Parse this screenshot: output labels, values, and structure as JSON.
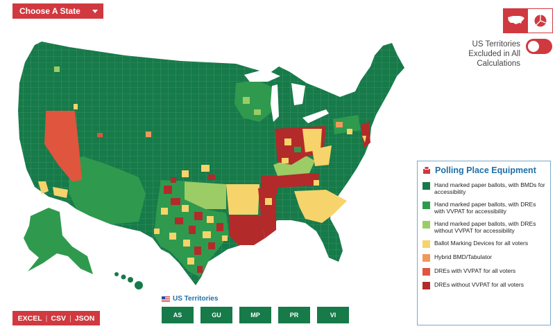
{
  "state_selector": {
    "label": "Choose A State"
  },
  "territory_toggle": {
    "label": "US Territories Excluded in All Calculations"
  },
  "legend": {
    "title": "Polling Place Equipment",
    "items": [
      {
        "label": "Hand marked paper ballots, with BMDs for accessibility",
        "color": "#167a49"
      },
      {
        "label": "Hand marked paper ballots, with DREs with VVPAT for accessibility",
        "color": "#2f9a4e"
      },
      {
        "label": "Hand marked paper ballots, with DREs without VVPAT for accessibility",
        "color": "#9ccc65"
      },
      {
        "label": "Ballot Marking Devices for all voters",
        "color": "#f7d36b"
      },
      {
        "label": "Hybrid BMD/Tabulator",
        "color": "#f0995a"
      },
      {
        "label": "DREs with VVPAT for all voters",
        "color": "#e0553d"
      },
      {
        "label": "DREs without VVPAT for all voters",
        "color": "#b32a2a"
      }
    ]
  },
  "territories": {
    "heading": "US Territories",
    "buttons": [
      "AS",
      "GU",
      "MP",
      "PR",
      "VI"
    ]
  },
  "export": {
    "excel": "EXCEL",
    "csv": "CSV",
    "json": "JSON"
  },
  "icons": {
    "view_map": "us-map-icon",
    "view_pie": "pie-chart-icon",
    "legend": "ballot-box-icon",
    "territories": "us-flag-icon"
  }
}
